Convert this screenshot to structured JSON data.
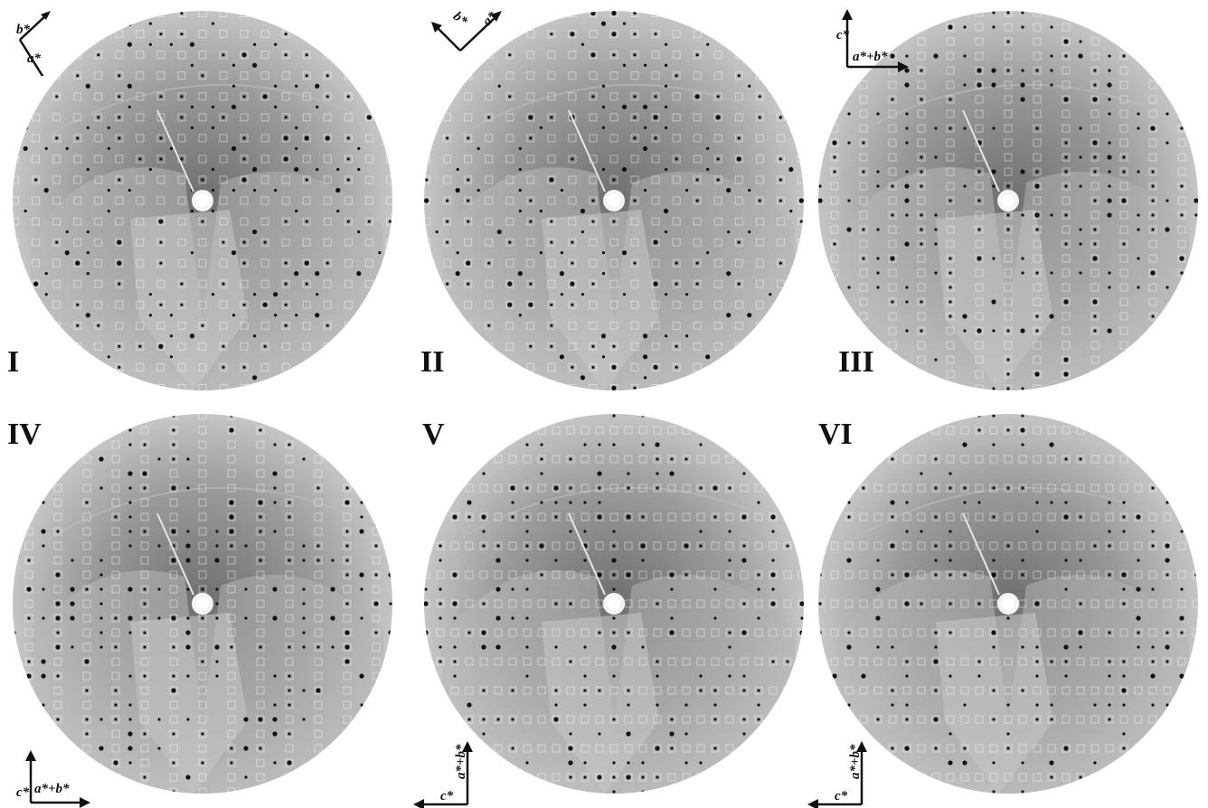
{
  "panels": [
    {
      "label": "I",
      "axes": [
        "b*",
        "a*"
      ]
    },
    {
      "label": "II",
      "axes": [
        "b*",
        "a*"
      ]
    },
    {
      "label": "III",
      "axes": [
        "c*",
        "a*+b*"
      ]
    },
    {
      "label": "IV",
      "axes": [
        "c*",
        "a*+b*"
      ]
    },
    {
      "label": "V",
      "axes": [
        "c*",
        "a*+b*"
      ]
    },
    {
      "label": "VI",
      "axes": [
        "c*",
        "a*+b*"
      ]
    }
  ],
  "colors": {
    "disk_light": "#cfcfcf",
    "disk_dark": "#8a8a8a",
    "spot": "#111111",
    "box": "#ffffff",
    "ink": "#111111"
  }
}
